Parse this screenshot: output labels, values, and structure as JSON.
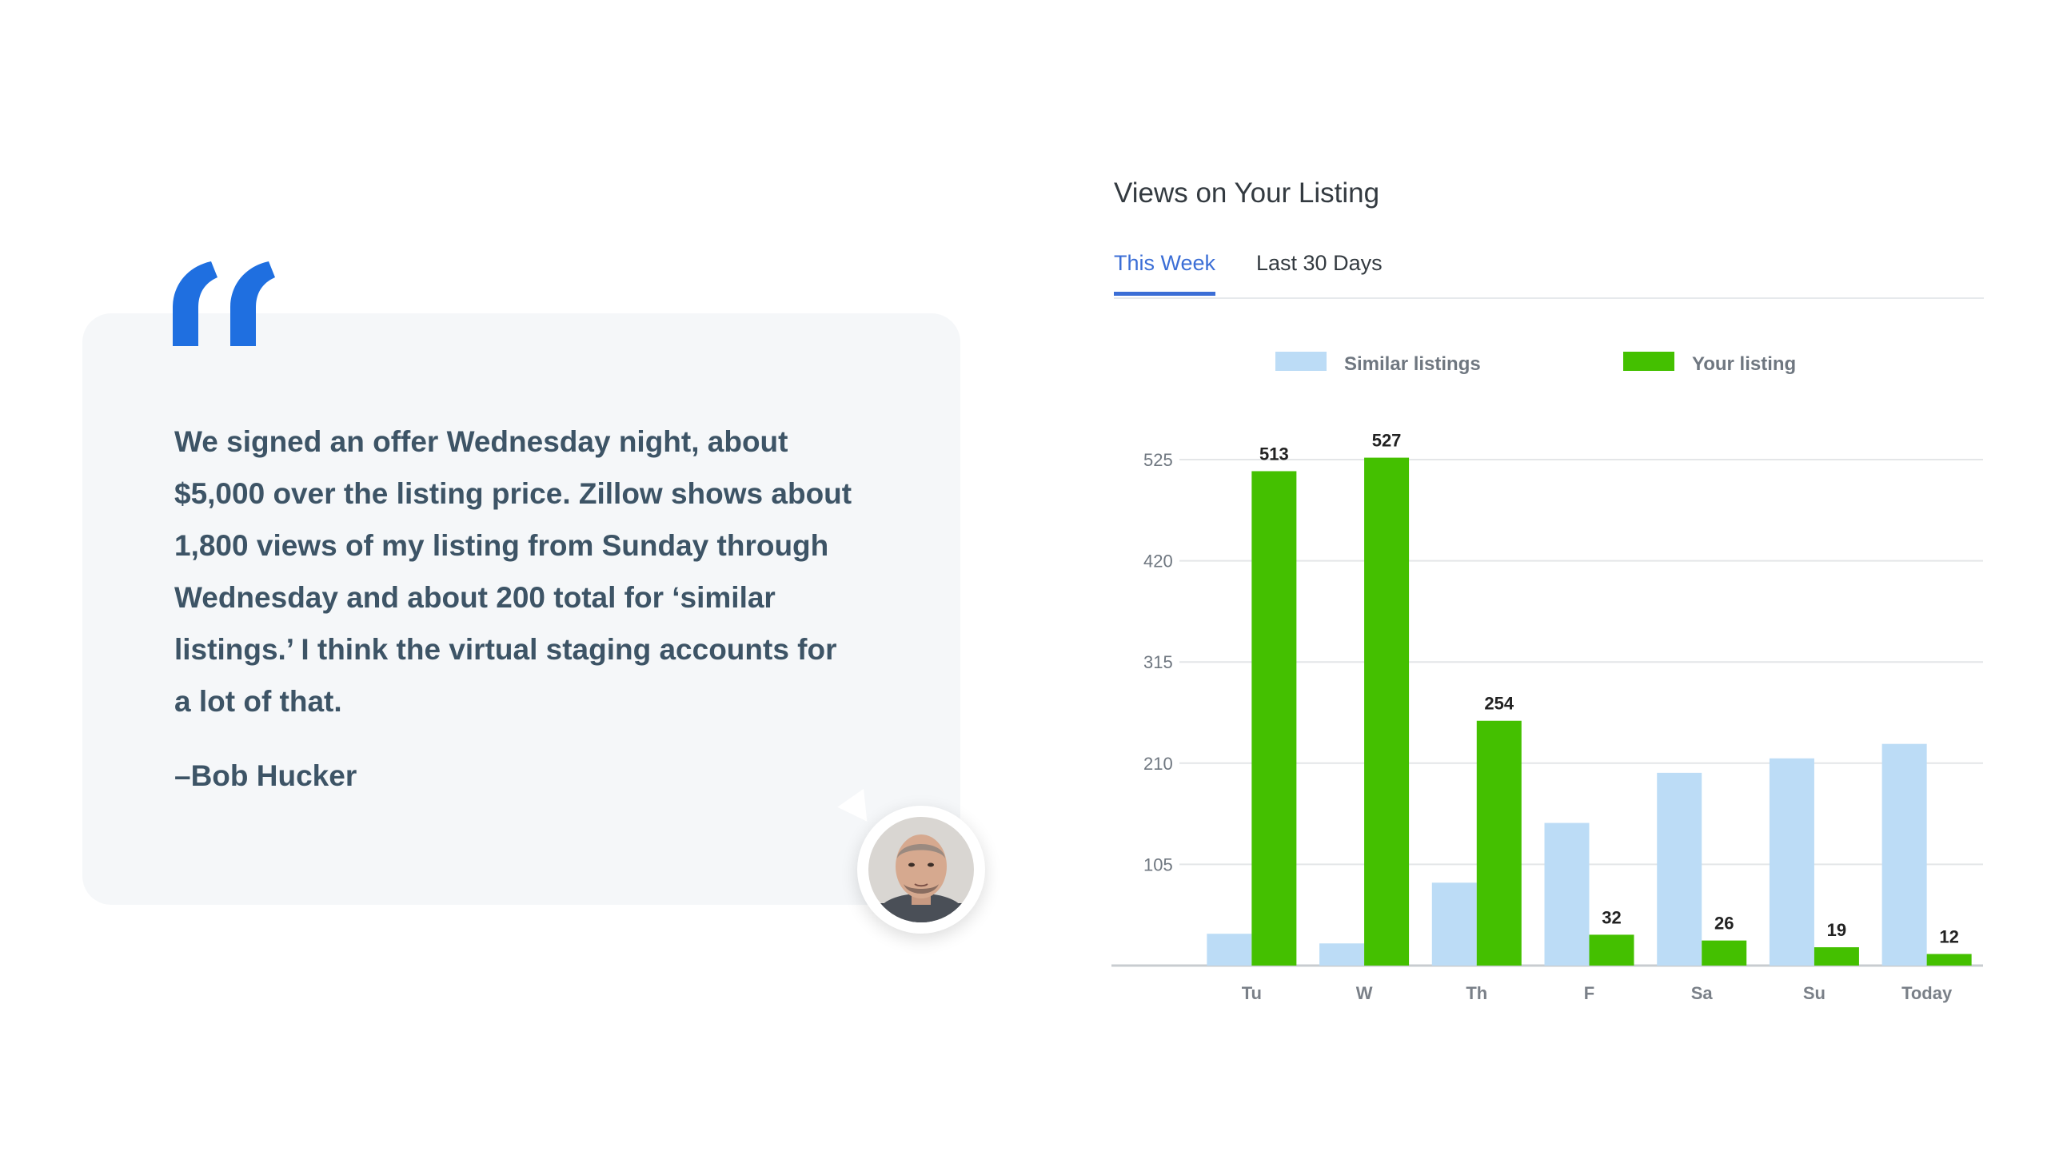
{
  "testimonial": {
    "quote": "We signed an offer Wednesday night, about $5,000 over the listing price. Zillow shows about 1,800 views of my listing from Sunday through Wednesday and about 200 total for ‘similar listings.’ I think the virtual staging accounts for a lot of that.",
    "author": "–Bob Hucker",
    "quote_mark_color": "#1f6fe0"
  },
  "chart_header": {
    "title": "Views on Your Listing",
    "tabs": [
      {
        "label": "This Week",
        "active": true
      },
      {
        "label": "Last 30 Days",
        "active": false
      }
    ]
  },
  "chart_data": {
    "type": "bar",
    "categories": [
      "Tu",
      "W",
      "Th",
      "F",
      "Sa",
      "Su",
      "Today"
    ],
    "series": [
      {
        "name": "Similar listings",
        "color": "#bcdcf6",
        "values": [
          33,
          23,
          86,
          148,
          200,
          215,
          230
        ]
      },
      {
        "name": "Your listing",
        "color": "#44c000",
        "values": [
          513,
          527,
          254,
          32,
          26,
          19,
          12
        ]
      }
    ],
    "data_labels": [
      "513",
      "527",
      "254",
      "32",
      "26",
      "19",
      "12"
    ],
    "y_ticks": [
      105,
      210,
      315,
      420,
      525
    ],
    "ylim": [
      0,
      525
    ],
    "grid": true,
    "legend_position": "top"
  }
}
